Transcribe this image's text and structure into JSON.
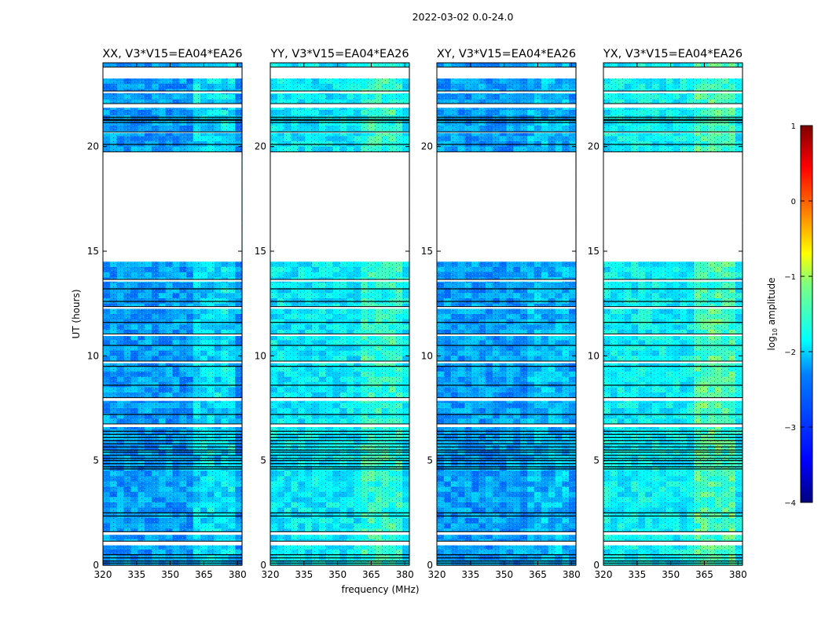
{
  "chart_data": {
    "type": "heatmap",
    "suptitle": "2022-03-02 0.0-24.0",
    "xlabel": "frequency (MHz)",
    "ylabel": "UT (hours)",
    "xlim": [
      320,
      382
    ],
    "ylim": [
      0,
      24
    ],
    "xticks": [
      "320",
      "335",
      "350",
      "365",
      "380"
    ],
    "xtick_values": [
      320,
      335,
      350,
      365,
      380
    ],
    "yticks": [
      "0",
      "5",
      "10",
      "15",
      "20"
    ],
    "ytick_values": [
      0,
      5,
      10,
      15,
      20
    ],
    "colorbar": {
      "label": "log10 amplitude",
      "label_main": "log",
      "label_sub": "10",
      "label_rest": " amplitude",
      "range": [
        -4,
        1
      ],
      "ticks": [
        "1",
        "0",
        "−1",
        "−2",
        "−3",
        "−4"
      ],
      "tick_values": [
        1,
        0,
        -1,
        -2,
        -3,
        -4
      ],
      "colormap": [
        "#00007f",
        "#0000ff",
        "#007fff",
        "#00ffff",
        "#7fff7f",
        "#ffff00",
        "#ff7f00",
        "#ff0000",
        "#7f0000"
      ]
    },
    "gaps_hours": [
      [
        0.95,
        1.15
      ],
      [
        1.45,
        1.6
      ],
      [
        6.6,
        6.75
      ],
      [
        7.85,
        8.0
      ],
      [
        9.65,
        9.75
      ],
      [
        10.95,
        11.05
      ],
      [
        12.25,
        12.35
      ],
      [
        13.55,
        13.65
      ],
      [
        14.5,
        19.75
      ],
      [
        20.65,
        20.7
      ],
      [
        21.85,
        22.05
      ],
      [
        22.55,
        22.65
      ],
      [
        23.25,
        23.8
      ]
    ],
    "black_lines_hours": [
      0.0,
      0.1,
      0.2,
      0.35,
      0.5,
      2.35,
      2.5,
      4.6,
      4.7,
      4.85,
      5.0,
      5.1,
      5.25,
      5.4,
      5.5,
      5.65,
      5.8,
      5.95,
      6.1,
      6.25,
      6.4,
      7.2,
      8.6,
      9.5,
      10.5,
      11.6,
      12.6,
      13.2,
      20.1,
      21.15,
      21.25,
      21.3,
      21.4
    ],
    "panels": [
      {
        "title": "XX, V3*V15=EA04*EA26",
        "mean_log_amp": -2.6,
        "band_boost": 0.35
      },
      {
        "title": "YY, V3*V15=EA04*EA26",
        "mean_log_amp": -2.2,
        "band_boost": 0.3
      },
      {
        "title": "XY, V3*V15=EA04*EA26",
        "mean_log_amp": -2.6,
        "band_boost": 0.15
      },
      {
        "title": "YX, V3*V15=EA04*EA26",
        "mean_log_amp": -2.15,
        "band_boost": 0.4
      }
    ]
  }
}
